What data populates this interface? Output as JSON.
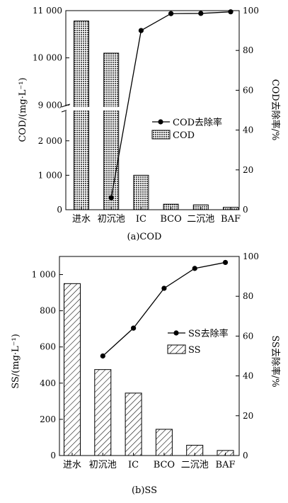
{
  "chart_data": [
    {
      "type": "bar",
      "caption": "(a)COD",
      "categories": [
        "进水",
        "初沉池",
        "IC",
        "BCO",
        "二沉池",
        "BAF"
      ],
      "ylabel_left": "COD/(mg·L⁻¹)",
      "ylabel_right": "COD去除率/%",
      "y_break": true,
      "yticks_lower": [
        "0",
        "1 000",
        "2 000"
      ],
      "yticks_upper": [
        "9 000",
        "10 000",
        "11 000"
      ],
      "yticks_right": [
        "0",
        "20",
        "40",
        "60",
        "80",
        "100"
      ],
      "ylim_right": [
        0,
        100
      ],
      "series": [
        {
          "name": "COD",
          "kind": "bar",
          "pattern": "crosshatch",
          "values": [
            10780,
            10100,
            1000,
            160,
            140,
            70
          ]
        },
        {
          "name": "COD去除率",
          "kind": "line-marker",
          "axis": "right",
          "values": [
            null,
            6,
            90,
            98.5,
            98.6,
            99.4
          ]
        }
      ],
      "legend_position": "center-right"
    },
    {
      "type": "bar",
      "caption": "(b)SS",
      "categories": [
        "进水",
        "初沉池",
        "IC",
        "BCO",
        "二沉池",
        "BAF"
      ],
      "ylabel_left": "SS/(mg·L⁻¹)",
      "ylabel_right": "SS去除率/%",
      "ylim_left": [
        0,
        1100
      ],
      "yticks_left": [
        "0",
        "200",
        "400",
        "600",
        "800",
        "1 000"
      ],
      "ylim_right": [
        0,
        100
      ],
      "yticks_right": [
        "0",
        "20",
        "40",
        "60",
        "80",
        "100"
      ],
      "series": [
        {
          "name": "SS",
          "kind": "bar",
          "pattern": "diagonal-hatch",
          "values": [
            950,
            475,
            345,
            145,
            57,
            28
          ]
        },
        {
          "name": "SS去除率",
          "kind": "line-marker",
          "axis": "right",
          "values": [
            null,
            50,
            64,
            84,
            94,
            97
          ]
        }
      ],
      "legend_position": "center-right"
    }
  ]
}
